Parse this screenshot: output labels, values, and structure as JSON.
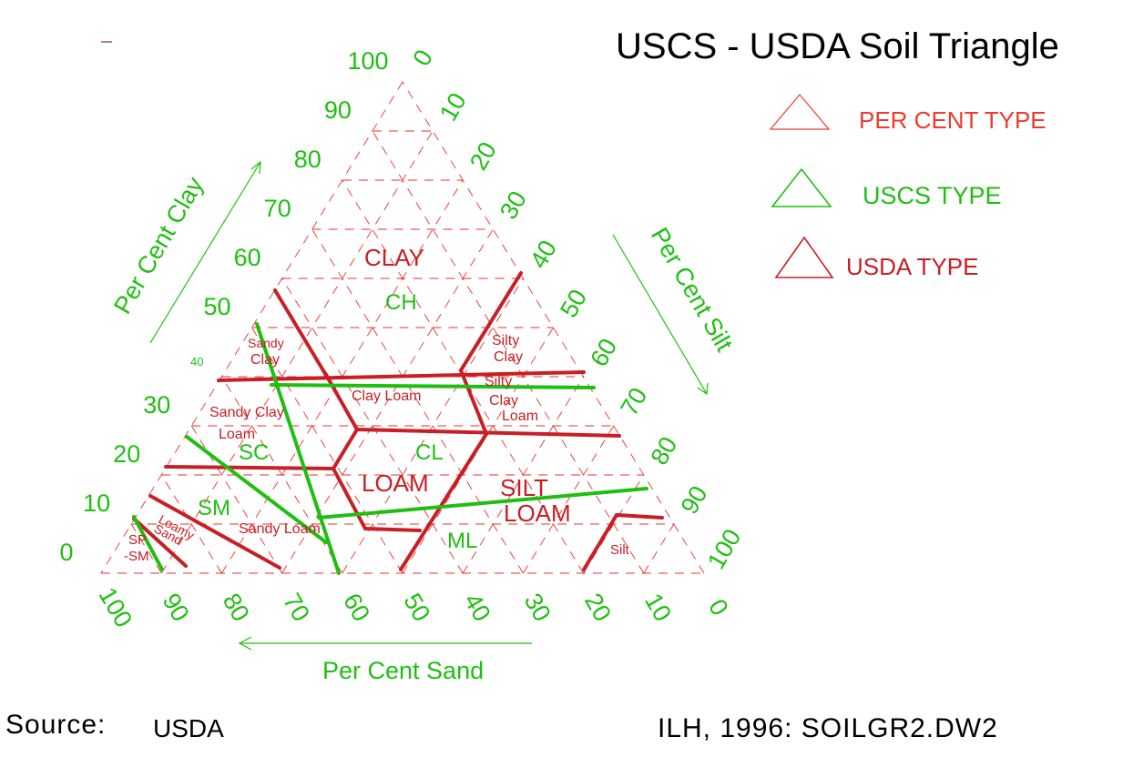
{
  "title": "USCS - USDA Soil Triangle",
  "legend": {
    "percent_type": "PER CENT TYPE",
    "uscs_type": "USCS TYPE",
    "usda_type": "USDA TYPE"
  },
  "axes": {
    "clay_label": "Per Cent Clay",
    "silt_label": "Per Cent Silt",
    "sand_label": "Per Cent Sand",
    "clay_ticks": [
      "100",
      "90",
      "80",
      "70",
      "60",
      "50",
      "40",
      "30",
      "20",
      "10",
      "0"
    ],
    "silt_ticks": [
      "0",
      "10",
      "20",
      "30",
      "40",
      "50",
      "60",
      "70",
      "80",
      "90",
      "100"
    ],
    "sand_ticks": [
      "100",
      "90",
      "80",
      "70",
      "60",
      "50",
      "40",
      "30",
      "20",
      "10",
      "0"
    ]
  },
  "usda_classes": {
    "clay": "CLAY",
    "sandy_clay_1": "Sandy",
    "sandy_clay_2": "Clay",
    "silty_clay_1": "Silty",
    "silty_clay_2": "Clay",
    "clay_loam": "Clay Loam",
    "silty_clay_loam_1": "Silty",
    "silty_clay_loam_2": "Clay",
    "silty_clay_loam_3": "Loam",
    "sandy_clay_loam_1": "Sandy Clay",
    "sandy_clay_loam_2": "Loam",
    "loam": "LOAM",
    "silt_loam_1": "SILT",
    "silt_loam_2": "LOAM",
    "sandy_loam": "Sandy Loam",
    "loamy_sand_1": "Loamy",
    "loamy_sand_2": "Sand",
    "silt": "Silt"
  },
  "uscs_classes": {
    "ch": "CH",
    "cl": "CL",
    "sc": "SC",
    "sm": "SM",
    "ml": "ML",
    "sp_sm_1": "SP",
    "sp_sm_2": "-SM"
  },
  "footer": {
    "source_label": "Source:",
    "source_value": "USDA",
    "credit": "ILH, 1996: SOILGR2.DW2"
  },
  "colors": {
    "green": "#1fbf12",
    "red": "#c81e24",
    "grid_red": "#e8322a"
  }
}
